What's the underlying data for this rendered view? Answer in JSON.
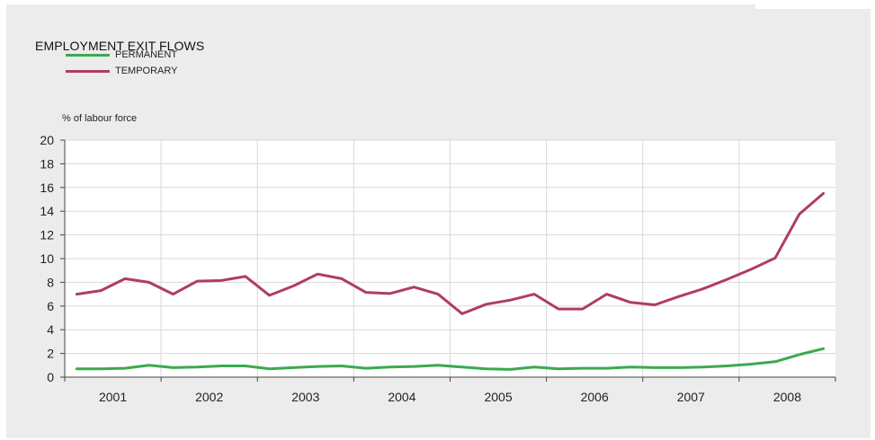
{
  "chart_data": {
    "type": "line",
    "title": "EMPLOYMENT EXIT FLOWS",
    "ylabel": "% of labour force",
    "ylim": [
      0,
      20
    ],
    "yticks": [
      0,
      2,
      4,
      6,
      8,
      10,
      12,
      14,
      16,
      18,
      20
    ],
    "categories": [
      "2001",
      "2002",
      "2003",
      "2004",
      "2005",
      "2006",
      "2007",
      "2008"
    ],
    "grid": true,
    "legend_position": "top-left",
    "x": [
      "2001 Q1",
      "2001 Q2",
      "2001 Q3",
      "2001 Q4",
      "2002 Q1",
      "2002 Q2",
      "2002 Q3",
      "2002 Q4",
      "2003 Q1",
      "2003 Q2",
      "2003 Q3",
      "2003 Q4",
      "2004 Q1",
      "2004 Q2",
      "2004 Q3",
      "2004 Q4",
      "2005 Q1",
      "2005 Q2",
      "2005 Q3",
      "2005 Q4",
      "2006 Q1",
      "2006 Q2",
      "2006 Q3",
      "2006 Q4",
      "2007 Q1",
      "2007 Q2",
      "2007 Q3",
      "2007 Q4",
      "2008 Q1",
      "2008 Q2",
      "2008 Q3",
      "2008 Q4"
    ],
    "series": [
      {
        "name": "PERMANENT",
        "color": "#3aaa4f",
        "values": [
          0.7,
          0.7,
          0.75,
          1.0,
          0.8,
          0.85,
          0.95,
          0.95,
          0.7,
          0.8,
          0.9,
          0.95,
          0.75,
          0.85,
          0.9,
          1.0,
          0.85,
          0.7,
          0.65,
          0.85,
          0.7,
          0.75,
          0.75,
          0.85,
          0.8,
          0.8,
          0.85,
          0.95,
          1.1,
          1.3,
          1.9,
          2.4
        ]
      },
      {
        "name": "TEMPORARY",
        "color": "#b03d5e",
        "values": [
          7.0,
          7.3,
          8.3,
          8.0,
          7.0,
          8.1,
          8.15,
          8.5,
          6.9,
          7.7,
          8.7,
          8.3,
          7.15,
          7.05,
          7.6,
          7.0,
          5.35,
          6.15,
          6.5,
          7.0,
          5.75,
          5.75,
          7.0,
          6.3,
          6.1,
          6.8,
          7.45,
          8.25,
          9.1,
          10.05,
          13.75,
          15.5
        ]
      }
    ]
  }
}
